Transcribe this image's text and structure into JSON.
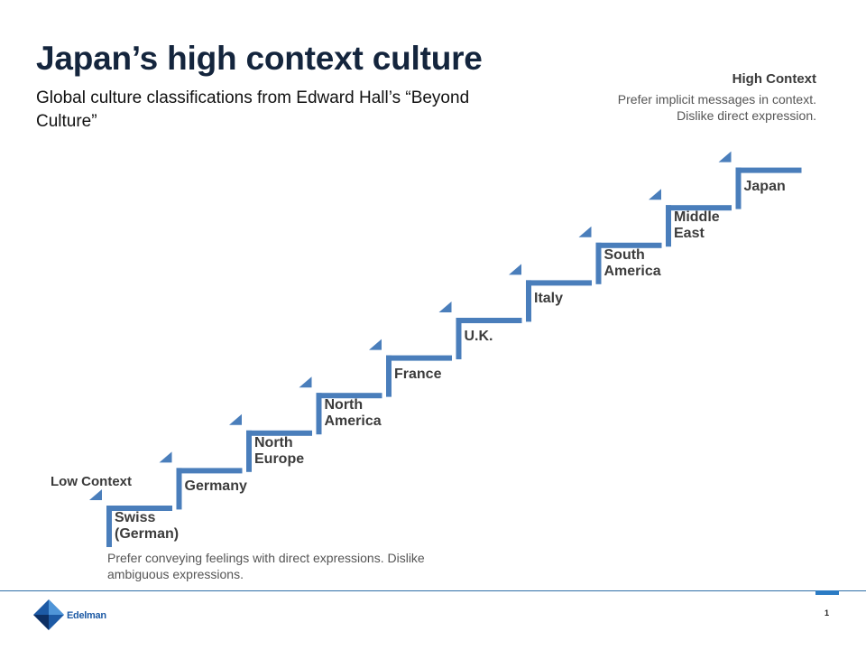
{
  "title": "Japan’s high context culture",
  "subtitle": "Global culture classifications from Edward Hall’s “Beyond Culture”",
  "high_context": {
    "label": "High Context",
    "description": "Prefer implicit messages in context. Dislike direct expression."
  },
  "low_context": {
    "label": "Low Context",
    "description": "Prefer conveying feelings with direct expressions. Dislike ambiguous expressions."
  },
  "steps": [
    {
      "label": "Swiss\n(German)"
    },
    {
      "label": "Germany"
    },
    {
      "label": "North\nEurope"
    },
    {
      "label": "North\nAmerica"
    },
    {
      "label": "France"
    },
    {
      "label": "U.K."
    },
    {
      "label": "Italy"
    },
    {
      "label": "South\nAmerica"
    },
    {
      "label": "Middle\nEast"
    },
    {
      "label": "Japan"
    }
  ],
  "colors": {
    "step": "#4a7ebb",
    "title": "#14253d",
    "brand": "#1d5aa5"
  },
  "footer": {
    "logo_text": "Edelman",
    "page_number": "1"
  }
}
